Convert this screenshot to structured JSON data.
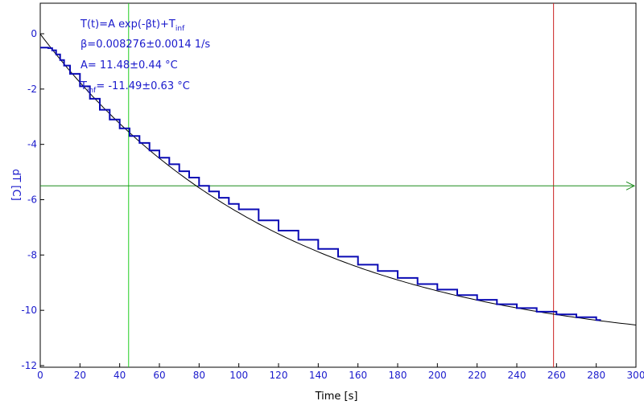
{
  "chart_data": {
    "type": "line",
    "title": "",
    "xlabel": "Time [s]",
    "ylabel": "dT [C]",
    "xlim": [
      0,
      300
    ],
    "ylim": [
      -12,
      1
    ],
    "xticks": [
      0,
      20,
      40,
      60,
      80,
      100,
      120,
      140,
      160,
      180,
      200,
      220,
      240,
      260,
      280,
      300
    ],
    "yticks": [
      0,
      -2,
      -4,
      -6,
      -8,
      -10,
      -12
    ],
    "grid": false,
    "colors": {
      "frame": "#000000",
      "tick_text": "#1a1acc",
      "data": "#0a0ab4",
      "fit": "#000000",
      "cursor_a": "#22cc22",
      "cursor_b": "#cc2222",
      "crosshair": "#1a8a1a"
    },
    "annotations": {
      "line1_main": "T(t)=A exp(-βt)+T",
      "line1_sub": "inf",
      "line2": "β=0.008276±0.0014 1/s",
      "line3": "A= 11.48±0.44 °C",
      "line4_pre": "T",
      "line4_sub": "inf",
      "line4_post": "= -11.49±0.63 °C"
    },
    "fit": {
      "A": 11.48,
      "beta": 0.008276,
      "Tinf": -11.49
    },
    "series": [
      {
        "values_xy": [
          [
            0,
            -0.5
          ],
          [
            2,
            -0.5
          ],
          [
            4,
            -0.52
          ],
          [
            6,
            -0.6
          ],
          [
            8,
            -0.75
          ],
          [
            10,
            -0.95
          ],
          [
            12,
            -1.15
          ],
          [
            15,
            -1.45
          ],
          [
            20,
            -1.9
          ],
          [
            25,
            -2.35
          ],
          [
            30,
            -2.75
          ],
          [
            35,
            -3.1
          ],
          [
            40,
            -3.42
          ],
          [
            45,
            -3.7
          ],
          [
            50,
            -3.95
          ],
          [
            55,
            -4.22
          ],
          [
            60,
            -4.48
          ],
          [
            65,
            -4.72
          ],
          [
            70,
            -4.97
          ],
          [
            75,
            -5.2
          ],
          [
            80,
            -5.5
          ],
          [
            85,
            -5.7
          ],
          [
            90,
            -5.93
          ],
          [
            95,
            -6.15
          ],
          [
            100,
            -6.35
          ],
          [
            110,
            -6.75
          ],
          [
            120,
            -7.12
          ],
          [
            130,
            -7.45
          ],
          [
            140,
            -7.78
          ],
          [
            150,
            -8.06
          ],
          [
            160,
            -8.35
          ],
          [
            170,
            -8.58
          ],
          [
            180,
            -8.83
          ],
          [
            190,
            -9.05
          ],
          [
            200,
            -9.25
          ],
          [
            210,
            -9.45
          ],
          [
            220,
            -9.62
          ],
          [
            230,
            -9.78
          ],
          [
            240,
            -9.92
          ],
          [
            250,
            -10.05
          ],
          [
            260,
            -10.15
          ],
          [
            270,
            -10.25
          ],
          [
            280,
            -10.35
          ],
          [
            282,
            -10.37
          ]
        ]
      }
    ],
    "cursors": {
      "x1": 44.5,
      "x2": 258.5,
      "y": -5.5
    }
  }
}
